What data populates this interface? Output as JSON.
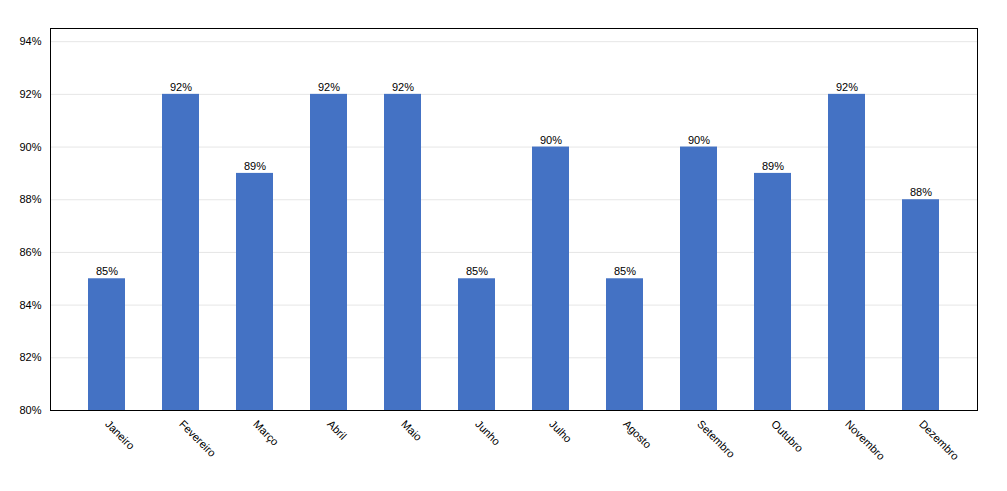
{
  "chart_data": {
    "type": "bar",
    "categories": [
      "Janeiro",
      "Fevereiro",
      "Março",
      "Abril",
      "Maio",
      "Junho",
      "Julho",
      "Agosto",
      "Setembro",
      "Outubro",
      "Novembro",
      "Dezembro"
    ],
    "values": [
      0.85,
      0.92,
      0.89,
      0.92,
      0.92,
      0.85,
      0.9,
      0.85,
      0.9,
      0.89,
      0.92,
      0.88
    ],
    "value_labels": [
      "85%",
      "92%",
      "89%",
      "92%",
      "92%",
      "85%",
      "90%",
      "85%",
      "90%",
      "89%",
      "92%",
      "88%"
    ],
    "data_labels": true,
    "color": "#4472C4",
    "ylim": [
      0.8,
      0.945
    ],
    "yticks": [
      {
        "value": 0.8,
        "label": "80%"
      },
      {
        "value": 0.82,
        "label": "82%"
      },
      {
        "value": 0.84,
        "label": "84%"
      },
      {
        "value": 0.86,
        "label": "86%"
      },
      {
        "value": 0.88,
        "label": "88%"
      },
      {
        "value": 0.9,
        "label": "90%"
      },
      {
        "value": 0.92,
        "label": "92%"
      },
      {
        "value": 0.94,
        "label": "94%"
      }
    ],
    "grid": true
  }
}
